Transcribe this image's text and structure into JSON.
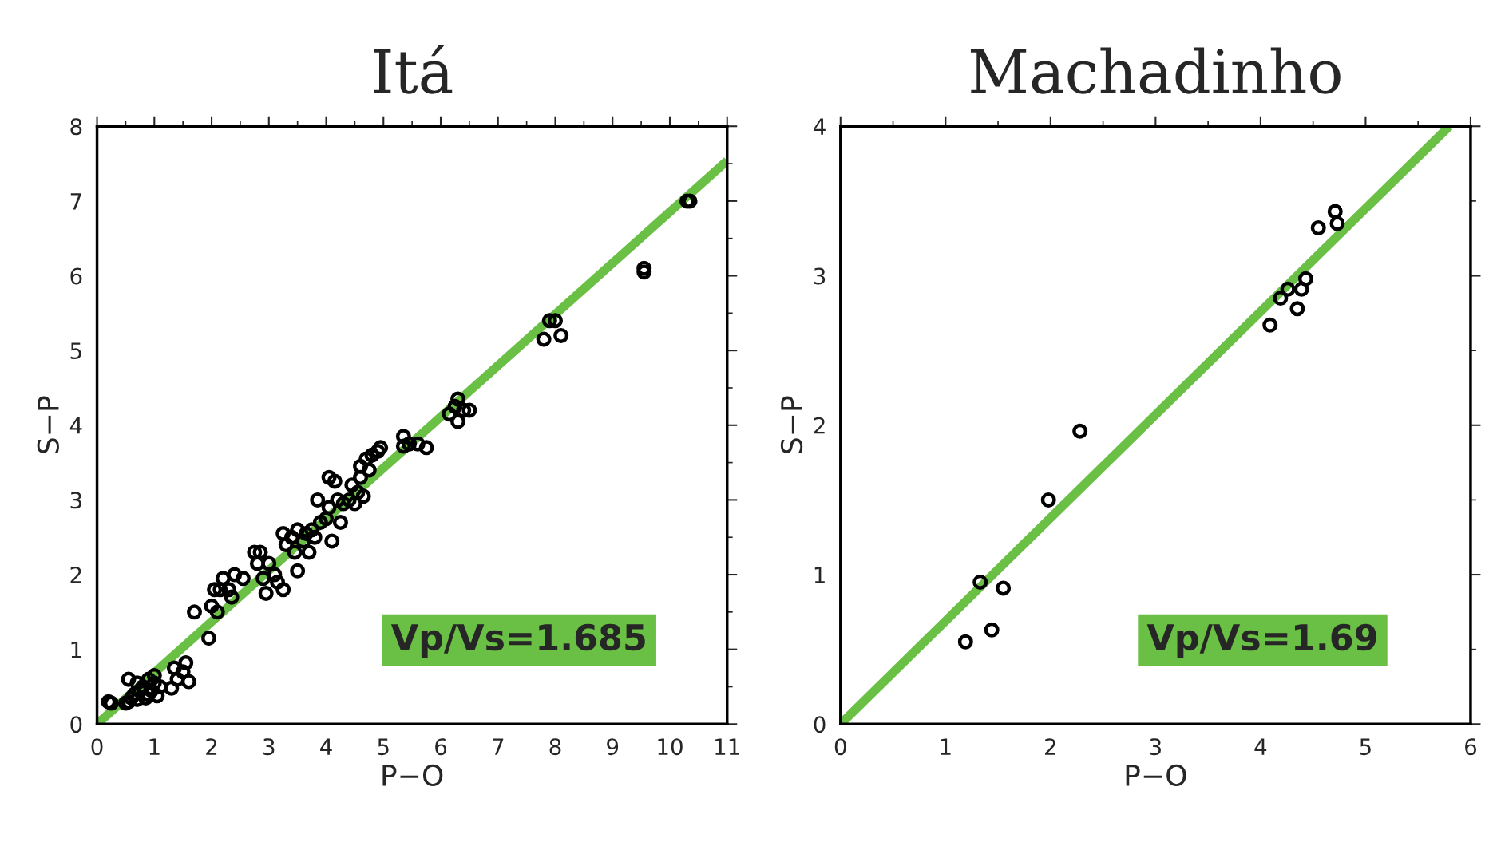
{
  "chart_data": [
    {
      "type": "scatter",
      "title": "Itá",
      "xlabel": "P−O",
      "ylabel": "S−P",
      "xlim": [
        0,
        11
      ],
      "ylim": [
        0,
        8
      ],
      "xticks": [
        0,
        1,
        2,
        3,
        4,
        5,
        6,
        7,
        8,
        9,
        10,
        11
      ],
      "yticks": [
        0,
        1,
        2,
        3,
        4,
        5,
        6,
        7,
        8
      ],
      "grid": false,
      "legend": false,
      "annotations": [
        "Vp/Vs=1.685"
      ],
      "series": [
        {
          "marker": "circle",
          "color": "#000000",
          "x": [
            0.25,
            0.2,
            0.5,
            0.55,
            0.6,
            0.55,
            0.7,
            0.75,
            0.8,
            0.85,
            0.9,
            0.95,
            1.0,
            1.0,
            1.05,
            1.1,
            0.9,
            0.65,
            0.7,
            1.3,
            1.35,
            1.4,
            1.5,
            1.55,
            1.6,
            1.7,
            1.95,
            2.0,
            2.05,
            2.1,
            2.15,
            2.2,
            2.3,
            2.35,
            2.4,
            2.55,
            2.75,
            2.8,
            2.85,
            2.9,
            2.95,
            3.0,
            3.1,
            3.15,
            3.25,
            3.25,
            3.3,
            3.4,
            3.45,
            3.5,
            3.5,
            3.6,
            3.65,
            3.7,
            3.75,
            3.8,
            3.85,
            3.9,
            4.0,
            4.05,
            4.05,
            4.1,
            4.15,
            4.2,
            4.25,
            4.3,
            4.4,
            4.45,
            4.5,
            4.55,
            4.6,
            4.6,
            4.65,
            4.7,
            4.75,
            4.8,
            4.9,
            4.95,
            5.35,
            5.35,
            5.45,
            5.6,
            5.75,
            6.15,
            6.25,
            6.3,
            6.3,
            6.4,
            6.5,
            7.8,
            7.9,
            8.0,
            8.1,
            9.55,
            9.55,
            10.3,
            10.35
          ],
          "values": [
            0.28,
            0.3,
            0.28,
            0.3,
            0.35,
            0.6,
            0.55,
            0.45,
            0.5,
            0.35,
            0.4,
            0.45,
            0.55,
            0.65,
            0.38,
            0.5,
            0.6,
            0.4,
            0.33,
            0.48,
            0.75,
            0.6,
            0.7,
            0.82,
            0.57,
            1.5,
            1.15,
            1.58,
            1.8,
            1.5,
            1.8,
            1.95,
            1.8,
            1.7,
            2.0,
            1.95,
            2.3,
            2.15,
            2.3,
            1.95,
            1.75,
            2.15,
            2.0,
            1.9,
            1.8,
            2.55,
            2.4,
            2.5,
            2.3,
            2.6,
            2.05,
            2.45,
            2.55,
            2.3,
            2.6,
            2.5,
            3.0,
            2.7,
            2.75,
            2.9,
            3.3,
            2.45,
            3.25,
            3.0,
            2.7,
            2.95,
            3.0,
            3.2,
            2.95,
            3.1,
            3.3,
            3.45,
            3.05,
            3.55,
            3.4,
            3.6,
            3.65,
            3.7,
            3.85,
            3.72,
            3.75,
            3.75,
            3.7,
            4.15,
            4.25,
            4.35,
            4.05,
            4.2,
            4.2,
            5.15,
            5.4,
            5.4,
            5.2,
            6.1,
            6.05,
            7.0,
            7.0
          ]
        },
        {
          "type": "line",
          "color": "#6abf45",
          "x": [
            0,
            11
          ],
          "values": [
            0,
            7.54
          ]
        }
      ]
    },
    {
      "type": "scatter",
      "title": "Machadinho",
      "xlabel": "P−O",
      "ylabel": "S−P",
      "xlim": [
        0,
        6
      ],
      "ylim": [
        0,
        4
      ],
      "xticks": [
        0,
        1,
        2,
        3,
        4,
        5,
        6
      ],
      "yticks": [
        0,
        1,
        2,
        3,
        4
      ],
      "grid": false,
      "legend": false,
      "annotations": [
        "Vp/Vs=1.69"
      ],
      "series": [
        {
          "marker": "circle",
          "color": "#000000",
          "x": [
            1.19,
            1.33,
            1.44,
            1.55,
            1.98,
            2.28,
            4.09,
            4.19,
            4.26,
            4.35,
            4.39,
            4.43,
            4.55,
            4.71,
            4.73
          ],
          "values": [
            0.55,
            0.95,
            0.63,
            0.91,
            1.5,
            1.96,
            2.67,
            2.85,
            2.91,
            2.78,
            2.91,
            2.98,
            3.32,
            3.43,
            3.35
          ]
        },
        {
          "type": "line",
          "color": "#6abf45",
          "x": [
            0,
            5.797
          ],
          "values": [
            0,
            4
          ]
        }
      ]
    }
  ]
}
